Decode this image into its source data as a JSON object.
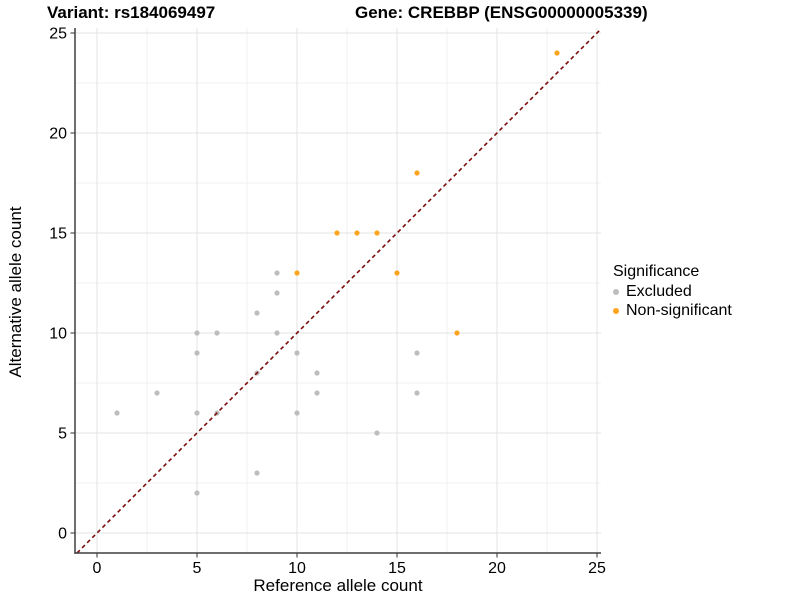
{
  "chart_data": {
    "type": "scatter",
    "titles": {
      "left": "Variant: rs184069497",
      "right": "Gene: CREBBP (ENSG00000005339)"
    },
    "xlabel": "Reference allele count",
    "ylabel": "Alternative allele count",
    "xlim": [
      -1.1,
      25.2
    ],
    "ylim": [
      -1.0,
      25.25
    ],
    "x_ticks": [
      0,
      5,
      10,
      15,
      20,
      25
    ],
    "y_ticks": [
      0,
      5,
      10,
      15,
      20,
      25
    ],
    "minor_ticks": [
      2.5,
      7.5,
      12.5,
      17.5,
      22.5
    ],
    "grid": "major+minor",
    "grid_major_color": "#e3e3e3",
    "grid_minor_color": "#f1f1f1",
    "axis_color": "#3f3f3f",
    "legend_title": "Significance",
    "legend_position": "right",
    "reference_line": {
      "type": "abline",
      "slope": 1,
      "intercept": 0,
      "style": "dashed",
      "color": "#7a0c0c"
    },
    "series": [
      {
        "name": "Excluded",
        "color": "#bdbdbd",
        "points": [
          [
            1,
            6
          ],
          [
            3,
            7
          ],
          [
            5,
            2
          ],
          [
            5,
            6
          ],
          [
            5,
            9
          ],
          [
            5,
            10
          ],
          [
            6,
            6
          ],
          [
            6,
            10
          ],
          [
            8,
            3
          ],
          [
            8,
            8
          ],
          [
            8,
            11
          ],
          [
            9,
            10
          ],
          [
            9,
            12
          ],
          [
            9,
            13
          ],
          [
            10,
            6
          ],
          [
            10,
            9
          ],
          [
            11,
            7
          ],
          [
            11,
            8
          ],
          [
            14,
            5
          ],
          [
            16,
            7
          ],
          [
            16,
            9
          ]
        ]
      },
      {
        "name": "Non-significant",
        "color": "#ffa420",
        "points": [
          [
            10,
            13
          ],
          [
            12,
            15
          ],
          [
            13,
            15
          ],
          [
            14,
            15
          ],
          [
            15,
            13
          ],
          [
            16,
            18
          ],
          [
            18,
            10
          ],
          [
            23,
            24
          ]
        ]
      }
    ]
  }
}
